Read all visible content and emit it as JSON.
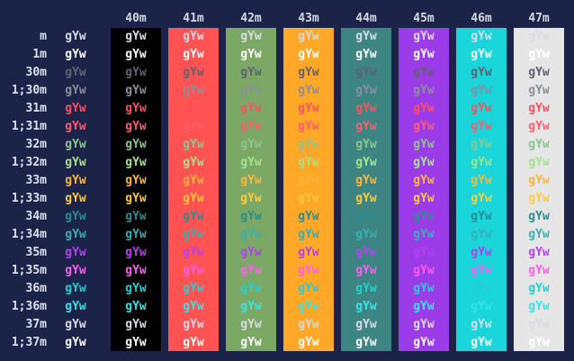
{
  "sample_text": "gYw",
  "column_headers": [
    "40m",
    "41m",
    "42m",
    "43m",
    "44m",
    "45m",
    "46m",
    "47m"
  ],
  "row_labels": [
    "m",
    "1m",
    "30m",
    "1;30m",
    "31m",
    "1;31m",
    "32m",
    "1;32m",
    "33m",
    "1;33m",
    "34m",
    "1;34m",
    "35m",
    "1;35m",
    "36m",
    "1;36m",
    "37m",
    "1;37m"
  ],
  "colors": {
    "terminal_background": "#1b2349",
    "bg": {
      "40m": "#000000",
      "41m": "#ff5252",
      "42m": "#7ca866",
      "43m": "#ffa726",
      "44m": "#3d8583",
      "45m": "#9c3be8",
      "46m": "#1ad5d9",
      "47m": "#e6e6e6"
    },
    "fg": {
      "default": "#d8dbe4",
      "30m": "#5f6370",
      "31m": "#ff4f5e",
      "32m": "#8dc48e",
      "33m": "#ffb53a",
      "34m": "#2a8e91",
      "35m": "#b341f0",
      "36m": "#22cfd2",
      "37m": "#d8dbe4"
    },
    "fg_bright": {
      "1m": "#ffffff",
      "1;30m": "#8a8f9c",
      "1;31m": "#ff5c70",
      "1;32m": "#a4e38a",
      "1;33m": "#ffca3a",
      "1;34m": "#37b0b4",
      "1;35m": "#ff5cf2",
      "1;36m": "#35e4e7",
      "1;37m": "#ffffff"
    }
  }
}
